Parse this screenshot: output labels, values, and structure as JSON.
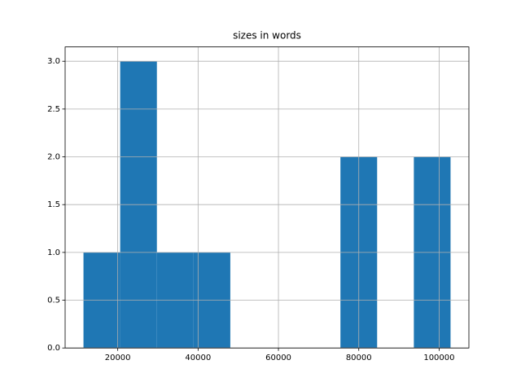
{
  "chart_data": {
    "type": "histogram",
    "title": "sizes in words",
    "bins": [
      11472,
      20609,
      29746,
      38883,
      48020,
      57158,
      66295,
      75432,
      84569,
      93706,
      102843
    ],
    "values": [
      1,
      3,
      1,
      1,
      0,
      0,
      0,
      2,
      0,
      2
    ],
    "color": "#1f77b4",
    "xlim": [
      6903,
      107412
    ],
    "xticks": [
      20000,
      40000,
      60000,
      80000,
      100000
    ],
    "ylim": [
      0,
      3.15
    ],
    "yticks": [
      {
        "value": 0,
        "label": "0.0"
      },
      0.5,
      {
        "value": 1,
        "label": "1.0"
      },
      1.5,
      {
        "value": 2,
        "label": "2.0"
      },
      2.5,
      {
        "value": 3,
        "label": "3.0"
      }
    ],
    "grid": true
  }
}
